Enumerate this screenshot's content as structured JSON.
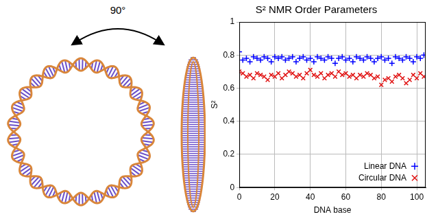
{
  "illustration": {
    "annotation": "90°"
  },
  "chart_data": {
    "type": "scatter",
    "title": "S² NMR Order Parameters",
    "x_label": "DNA base",
    "y_label": "S²",
    "xlim": [
      0,
      105
    ],
    "xticks": [
      0,
      20,
      40,
      60,
      80,
      100
    ],
    "ylim": [
      0,
      1
    ],
    "yticks": [
      0,
      0.2,
      0.4,
      0.6,
      0.8,
      1
    ],
    "grid": true,
    "legend": "lower right",
    "x": [
      0,
      2,
      4,
      6,
      8,
      10,
      12,
      14,
      16,
      18,
      20,
      22,
      24,
      26,
      28,
      30,
      32,
      34,
      36,
      38,
      40,
      42,
      44,
      46,
      48,
      50,
      52,
      54,
      56,
      58,
      60,
      62,
      64,
      66,
      68,
      70,
      72,
      74,
      76,
      78,
      80,
      82,
      84,
      86,
      88,
      90,
      92,
      94,
      96,
      98,
      100,
      102,
      104
    ],
    "series": [
      {
        "name": "Linear DNA",
        "color": "#0000ff",
        "marker": "plus",
        "values": [
          0.82,
          0.77,
          0.78,
          0.76,
          0.79,
          0.78,
          0.77,
          0.79,
          0.78,
          0.76,
          0.79,
          0.78,
          0.79,
          0.77,
          0.78,
          0.79,
          0.76,
          0.78,
          0.79,
          0.77,
          0.78,
          0.76,
          0.79,
          0.78,
          0.77,
          0.79,
          0.78,
          0.75,
          0.78,
          0.79,
          0.77,
          0.78,
          0.76,
          0.79,
          0.78,
          0.77,
          0.79,
          0.78,
          0.76,
          0.78,
          0.79,
          0.77,
          0.78,
          0.75,
          0.79,
          0.78,
          0.77,
          0.79,
          0.78,
          0.76,
          0.79,
          0.78,
          0.8
        ]
      },
      {
        "name": "Circular DNA",
        "color": "#e01010",
        "marker": "x",
        "values": [
          0.7,
          0.69,
          0.67,
          0.68,
          0.66,
          0.69,
          0.68,
          0.67,
          0.65,
          0.68,
          0.67,
          0.69,
          0.66,
          0.68,
          0.7,
          0.69,
          0.67,
          0.68,
          0.66,
          0.69,
          0.71,
          0.68,
          0.67,
          0.69,
          0.66,
          0.68,
          0.69,
          0.67,
          0.7,
          0.68,
          0.69,
          0.67,
          0.68,
          0.66,
          0.68,
          0.67,
          0.69,
          0.68,
          0.66,
          0.67,
          0.62,
          0.65,
          0.66,
          0.64,
          0.67,
          0.68,
          0.66,
          0.63,
          0.65,
          0.68,
          0.66,
          0.69,
          0.67
        ]
      }
    ]
  }
}
